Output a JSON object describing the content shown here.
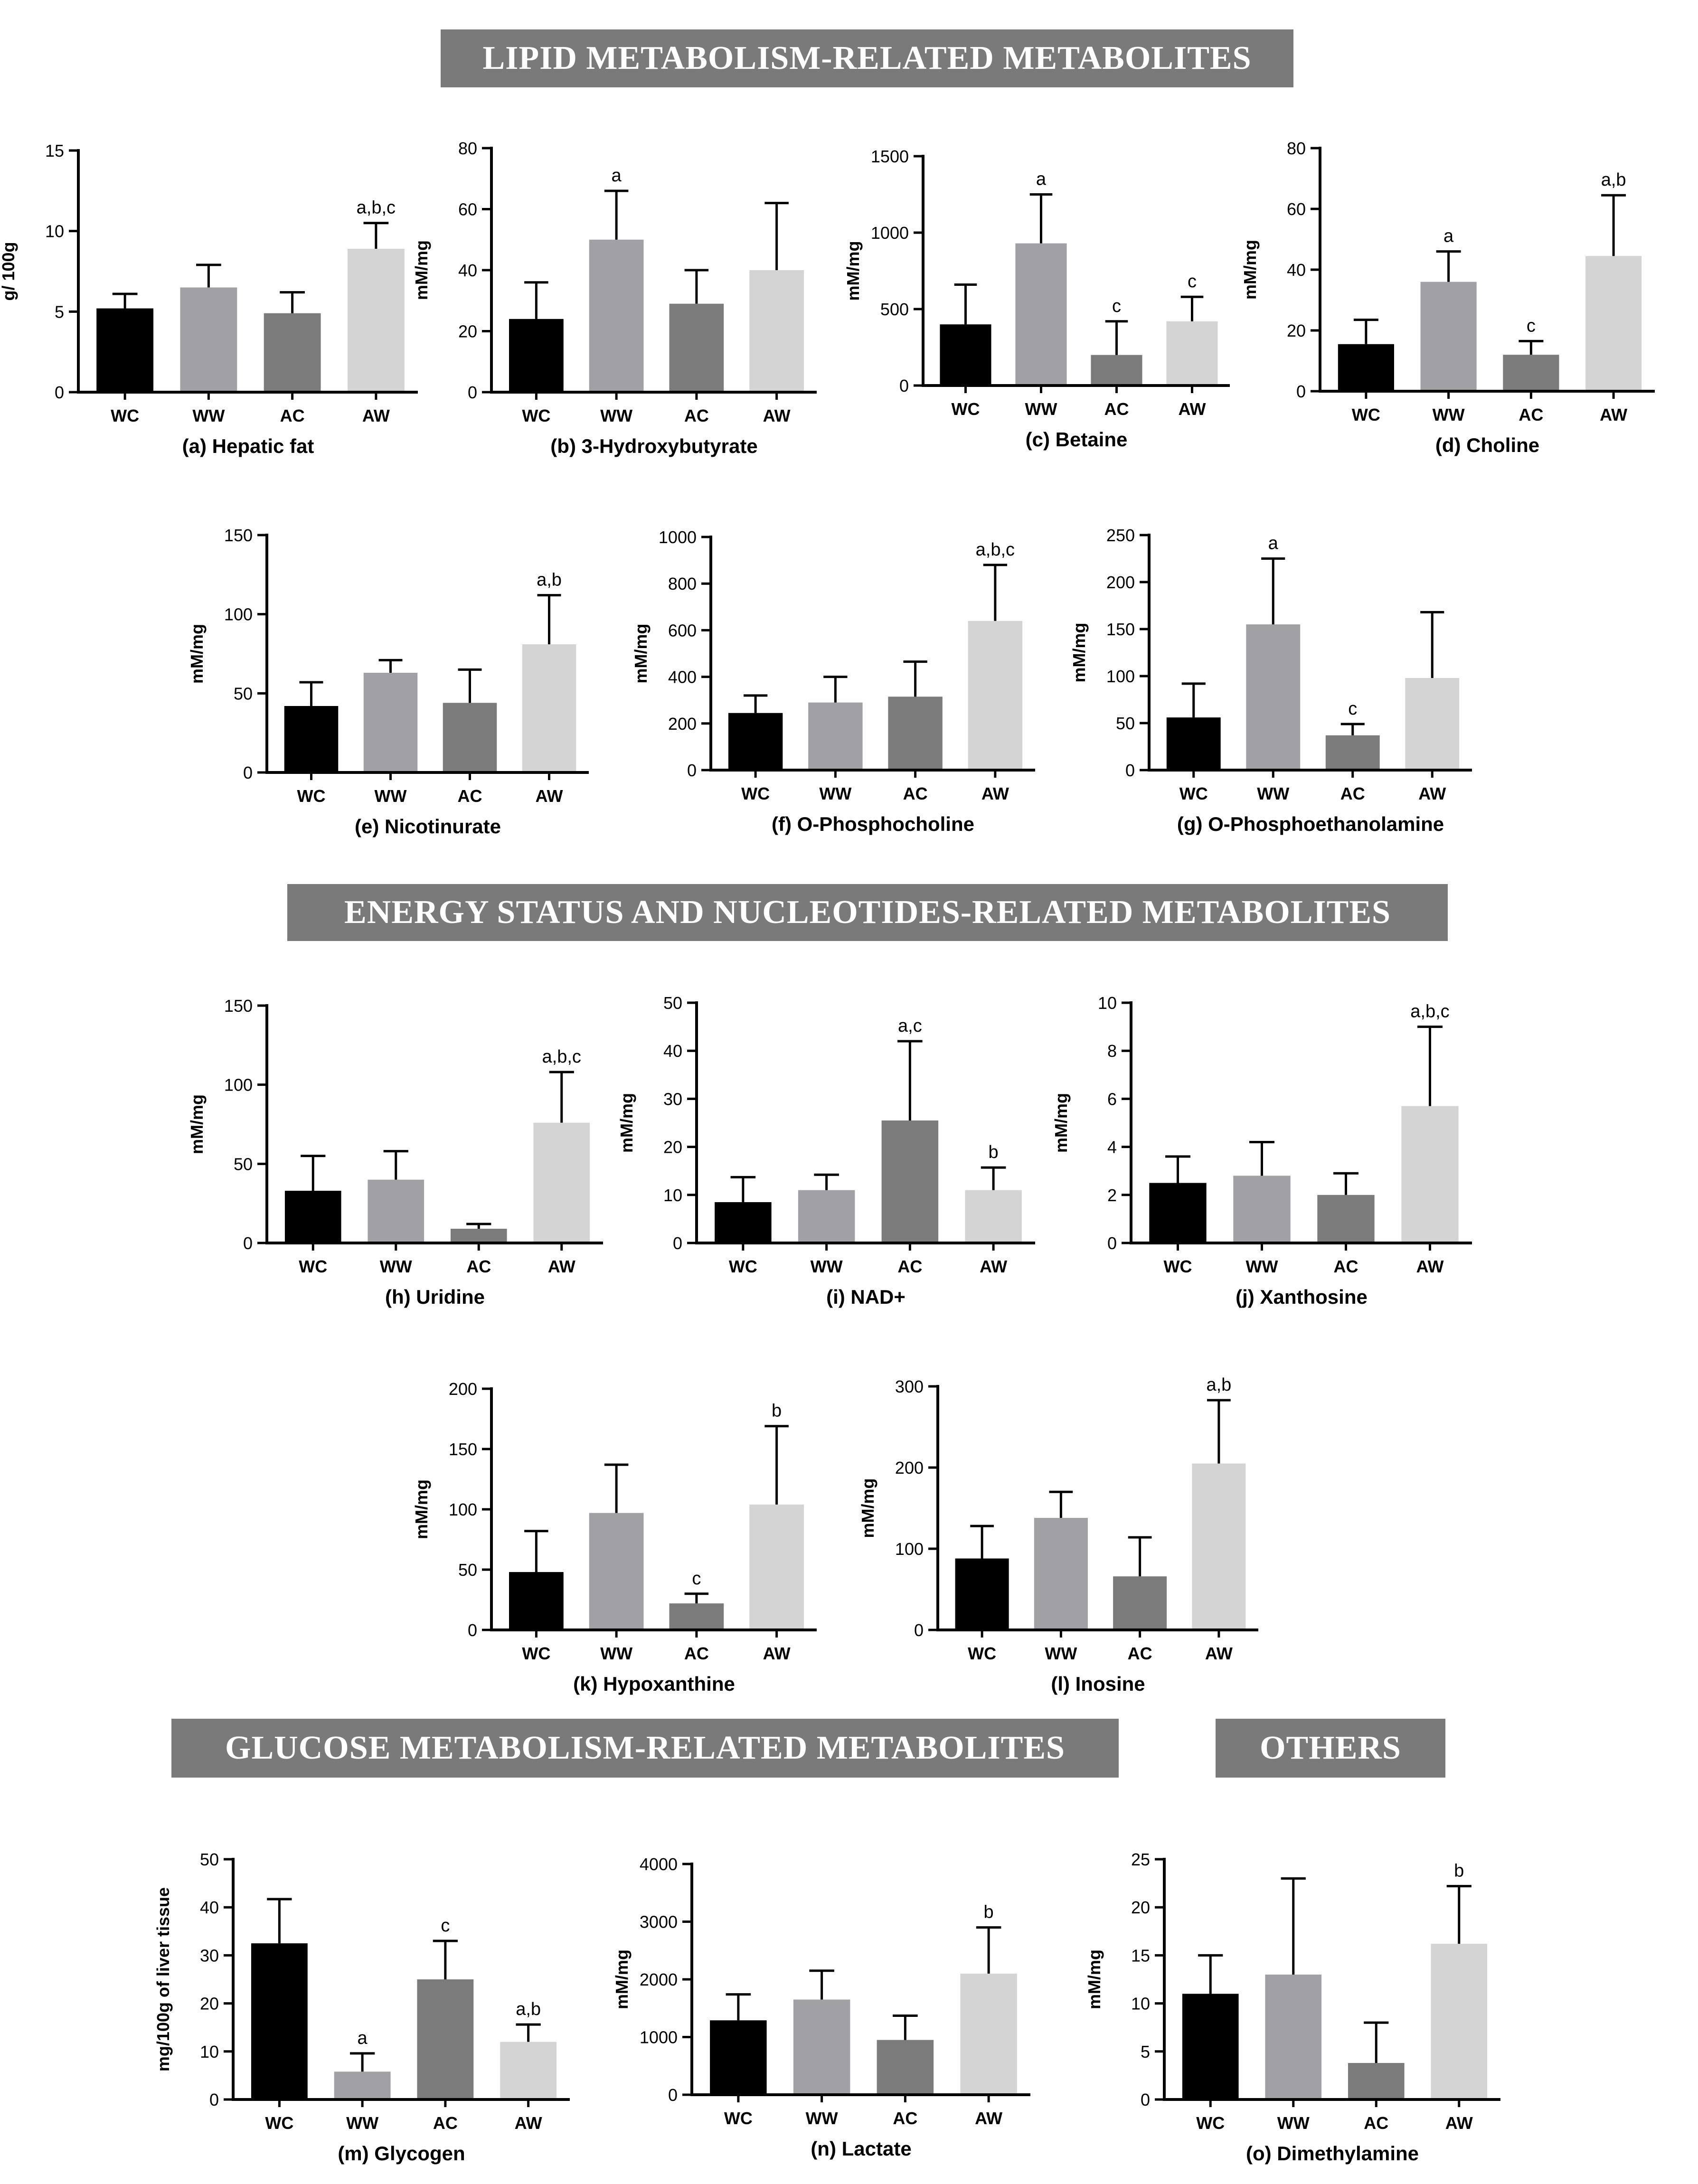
{
  "sections": {
    "lipid": "LIPID METABOLISM-RELATED METABOLITES",
    "energy": "ENERGY STATUS AND NUCLEOTIDES-RELATED METABOLITES",
    "glucose": "GLUCOSE METABOLISM-RELATED METABOLITES",
    "others": "OTHERS"
  },
  "colors": {
    "WC": "#000000",
    "WW": "#a0a0a5",
    "AC": "#7b7b7b",
    "AW": "#d4d4d4"
  },
  "chart_data": [
    {
      "id": "a",
      "type": "bar",
      "title": "(a) Hepatic fat",
      "ylabel": "g/ 100g",
      "ylim": [
        0,
        15
      ],
      "yticks": [
        0,
        5,
        10,
        15
      ],
      "categories": [
        "WC",
        "WW",
        "AC",
        "AW"
      ],
      "values": [
        5.2,
        6.5,
        4.9,
        8.9
      ],
      "errors": [
        0.9,
        1.4,
        1.3,
        1.6
      ],
      "annotations": [
        "",
        "",
        "",
        "a,b,c"
      ]
    },
    {
      "id": "b",
      "type": "bar",
      "title": "(b) 3-Hydroxybutyrate",
      "ylabel": "mM/mg",
      "ylim": [
        0,
        80
      ],
      "yticks": [
        0,
        20,
        40,
        60,
        80
      ],
      "categories": [
        "WC",
        "WW",
        "AC",
        "AW"
      ],
      "values": [
        24,
        50,
        29,
        40
      ],
      "errors": [
        12,
        16,
        11,
        22
      ],
      "annotations": [
        "",
        "a",
        "",
        ""
      ]
    },
    {
      "id": "c",
      "type": "bar",
      "title": "(c) Betaine",
      "ylabel": "mM/mg",
      "ylim": [
        0,
        1500
      ],
      "yticks": [
        0,
        500,
        1000,
        1500
      ],
      "categories": [
        "WC",
        "WW",
        "AC",
        "AW"
      ],
      "values": [
        400,
        930,
        200,
        420
      ],
      "errors": [
        260,
        320,
        220,
        160
      ],
      "annotations": [
        "",
        "a",
        "c",
        "c"
      ]
    },
    {
      "id": "d",
      "type": "bar",
      "title": "(d) Choline",
      "ylabel": "mM/mg",
      "ylim": [
        0,
        80
      ],
      "yticks": [
        0,
        20,
        40,
        60,
        80
      ],
      "categories": [
        "WC",
        "WW",
        "AC",
        "AW"
      ],
      "values": [
        15.5,
        36,
        12,
        44.5
      ],
      "errors": [
        8,
        10,
        4.5,
        20
      ],
      "annotations": [
        "",
        "a",
        "c",
        "a,b"
      ]
    },
    {
      "id": "e",
      "type": "bar",
      "title": "(e) Nicotinurate",
      "ylabel": "mM/mg",
      "ylim": [
        0,
        150
      ],
      "yticks": [
        0,
        50,
        100,
        150
      ],
      "categories": [
        "WC",
        "WW",
        "AC",
        "AW"
      ],
      "values": [
        42,
        63,
        44,
        81
      ],
      "errors": [
        15,
        8,
        21,
        31
      ],
      "annotations": [
        "",
        "",
        "",
        "a,b"
      ]
    },
    {
      "id": "f",
      "type": "bar",
      "title": "(f) O-Phosphocholine",
      "ylabel": "mM/mg",
      "ylim": [
        0,
        1000
      ],
      "yticks": [
        0,
        200,
        400,
        600,
        800,
        1000
      ],
      "categories": [
        "WC",
        "WW",
        "AC",
        "AW"
      ],
      "values": [
        245,
        290,
        315,
        640
      ],
      "errors": [
        75,
        110,
        150,
        240
      ],
      "annotations": [
        "",
        "",
        "",
        "a,b,c"
      ]
    },
    {
      "id": "g",
      "type": "bar",
      "title": "(g) O-Phosphoethanolamine",
      "ylabel": "mM/mg",
      "ylim": [
        0,
        250
      ],
      "yticks": [
        0,
        50,
        100,
        150,
        200,
        250
      ],
      "categories": [
        "WC",
        "WW",
        "AC",
        "AW"
      ],
      "values": [
        56,
        155,
        37,
        98
      ],
      "errors": [
        36,
        70,
        12,
        70
      ],
      "annotations": [
        "",
        "a",
        "c",
        ""
      ]
    },
    {
      "id": "h",
      "type": "bar",
      "title": "(h) Uridine",
      "ylabel": "mM/mg",
      "ylim": [
        0,
        150
      ],
      "yticks": [
        0,
        50,
        100,
        150
      ],
      "categories": [
        "WC",
        "WW",
        "AC",
        "AW"
      ],
      "values": [
        33,
        40,
        9,
        76
      ],
      "errors": [
        22,
        18,
        3,
        32
      ],
      "annotations": [
        "",
        "",
        "",
        "a,b,c"
      ]
    },
    {
      "id": "i",
      "type": "bar",
      "title": "(i) NAD+",
      "ylabel": "mM/mg",
      "ylim": [
        0,
        50
      ],
      "yticks": [
        0,
        10,
        20,
        30,
        40,
        50
      ],
      "categories": [
        "WC",
        "WW",
        "AC",
        "AW"
      ],
      "values": [
        8.5,
        11,
        25.5,
        11
      ],
      "errors": [
        5.2,
        3.2,
        16.5,
        4.7
      ],
      "annotations": [
        "",
        "",
        "a,c",
        "b"
      ]
    },
    {
      "id": "j",
      "type": "bar",
      "title": "(j) Xanthosine",
      "ylabel": "mM/mg",
      "ylim": [
        0,
        10
      ],
      "yticks": [
        0,
        2,
        4,
        6,
        8,
        10
      ],
      "categories": [
        "WC",
        "WW",
        "AC",
        "AW"
      ],
      "values": [
        2.5,
        2.8,
        2,
        5.7
      ],
      "errors": [
        1.1,
        1.4,
        0.9,
        3.3
      ],
      "annotations": [
        "",
        "",
        "",
        "a,b,c"
      ]
    },
    {
      "id": "k",
      "type": "bar",
      "title": "(k) Hypoxanthine",
      "ylabel": "mM/mg",
      "ylim": [
        0,
        200
      ],
      "yticks": [
        0,
        50,
        100,
        150,
        200
      ],
      "categories": [
        "WC",
        "WW",
        "AC",
        "AW"
      ],
      "values": [
        48,
        97,
        22,
        104
      ],
      "errors": [
        34,
        40,
        8,
        65
      ],
      "annotations": [
        "",
        "",
        "c",
        "b"
      ]
    },
    {
      "id": "l",
      "type": "bar",
      "title": "(l) Inosine",
      "ylabel": "mM/mg",
      "ylim": [
        0,
        300
      ],
      "yticks": [
        0,
        100,
        200,
        300
      ],
      "categories": [
        "WC",
        "WW",
        "AC",
        "AW"
      ],
      "values": [
        88,
        138,
        66,
        205
      ],
      "errors": [
        40,
        32,
        48,
        78
      ],
      "annotations": [
        "",
        "",
        "",
        "a,b"
      ]
    },
    {
      "id": "m",
      "type": "bar",
      "title": "(m) Glycogen",
      "ylabel": "mg/100g of liver tissue",
      "ylim": [
        0,
        50
      ],
      "yticks": [
        0,
        10,
        20,
        30,
        40,
        50
      ],
      "categories": [
        "WC",
        "WW",
        "AC",
        "AW"
      ],
      "values": [
        32.5,
        5.8,
        25,
        12
      ],
      "errors": [
        9.2,
        3.8,
        8,
        3.6
      ],
      "annotations": [
        "",
        "a",
        "c",
        "a,b"
      ]
    },
    {
      "id": "n",
      "type": "bar",
      "title": "(n) Lactate",
      "ylabel": "mM/mg",
      "ylim": [
        0,
        4000
      ],
      "yticks": [
        0,
        1000,
        2000,
        3000,
        4000
      ],
      "categories": [
        "WC",
        "WW",
        "AC",
        "AW"
      ],
      "values": [
        1290,
        1650,
        950,
        2100
      ],
      "errors": [
        450,
        500,
        420,
        800
      ],
      "annotations": [
        "",
        "",
        "",
        "b"
      ]
    },
    {
      "id": "o",
      "type": "bar",
      "title": "(o) Dimethylamine",
      "ylabel": "mM/mg",
      "ylim": [
        0,
        25
      ],
      "yticks": [
        0,
        5,
        10,
        15,
        20,
        25
      ],
      "categories": [
        "WC",
        "WW",
        "AC",
        "AW"
      ],
      "values": [
        11,
        13,
        3.8,
        16.2
      ],
      "errors": [
        4,
        10,
        4.2,
        6
      ],
      "annotations": [
        "",
        "",
        "",
        "b"
      ]
    }
  ]
}
